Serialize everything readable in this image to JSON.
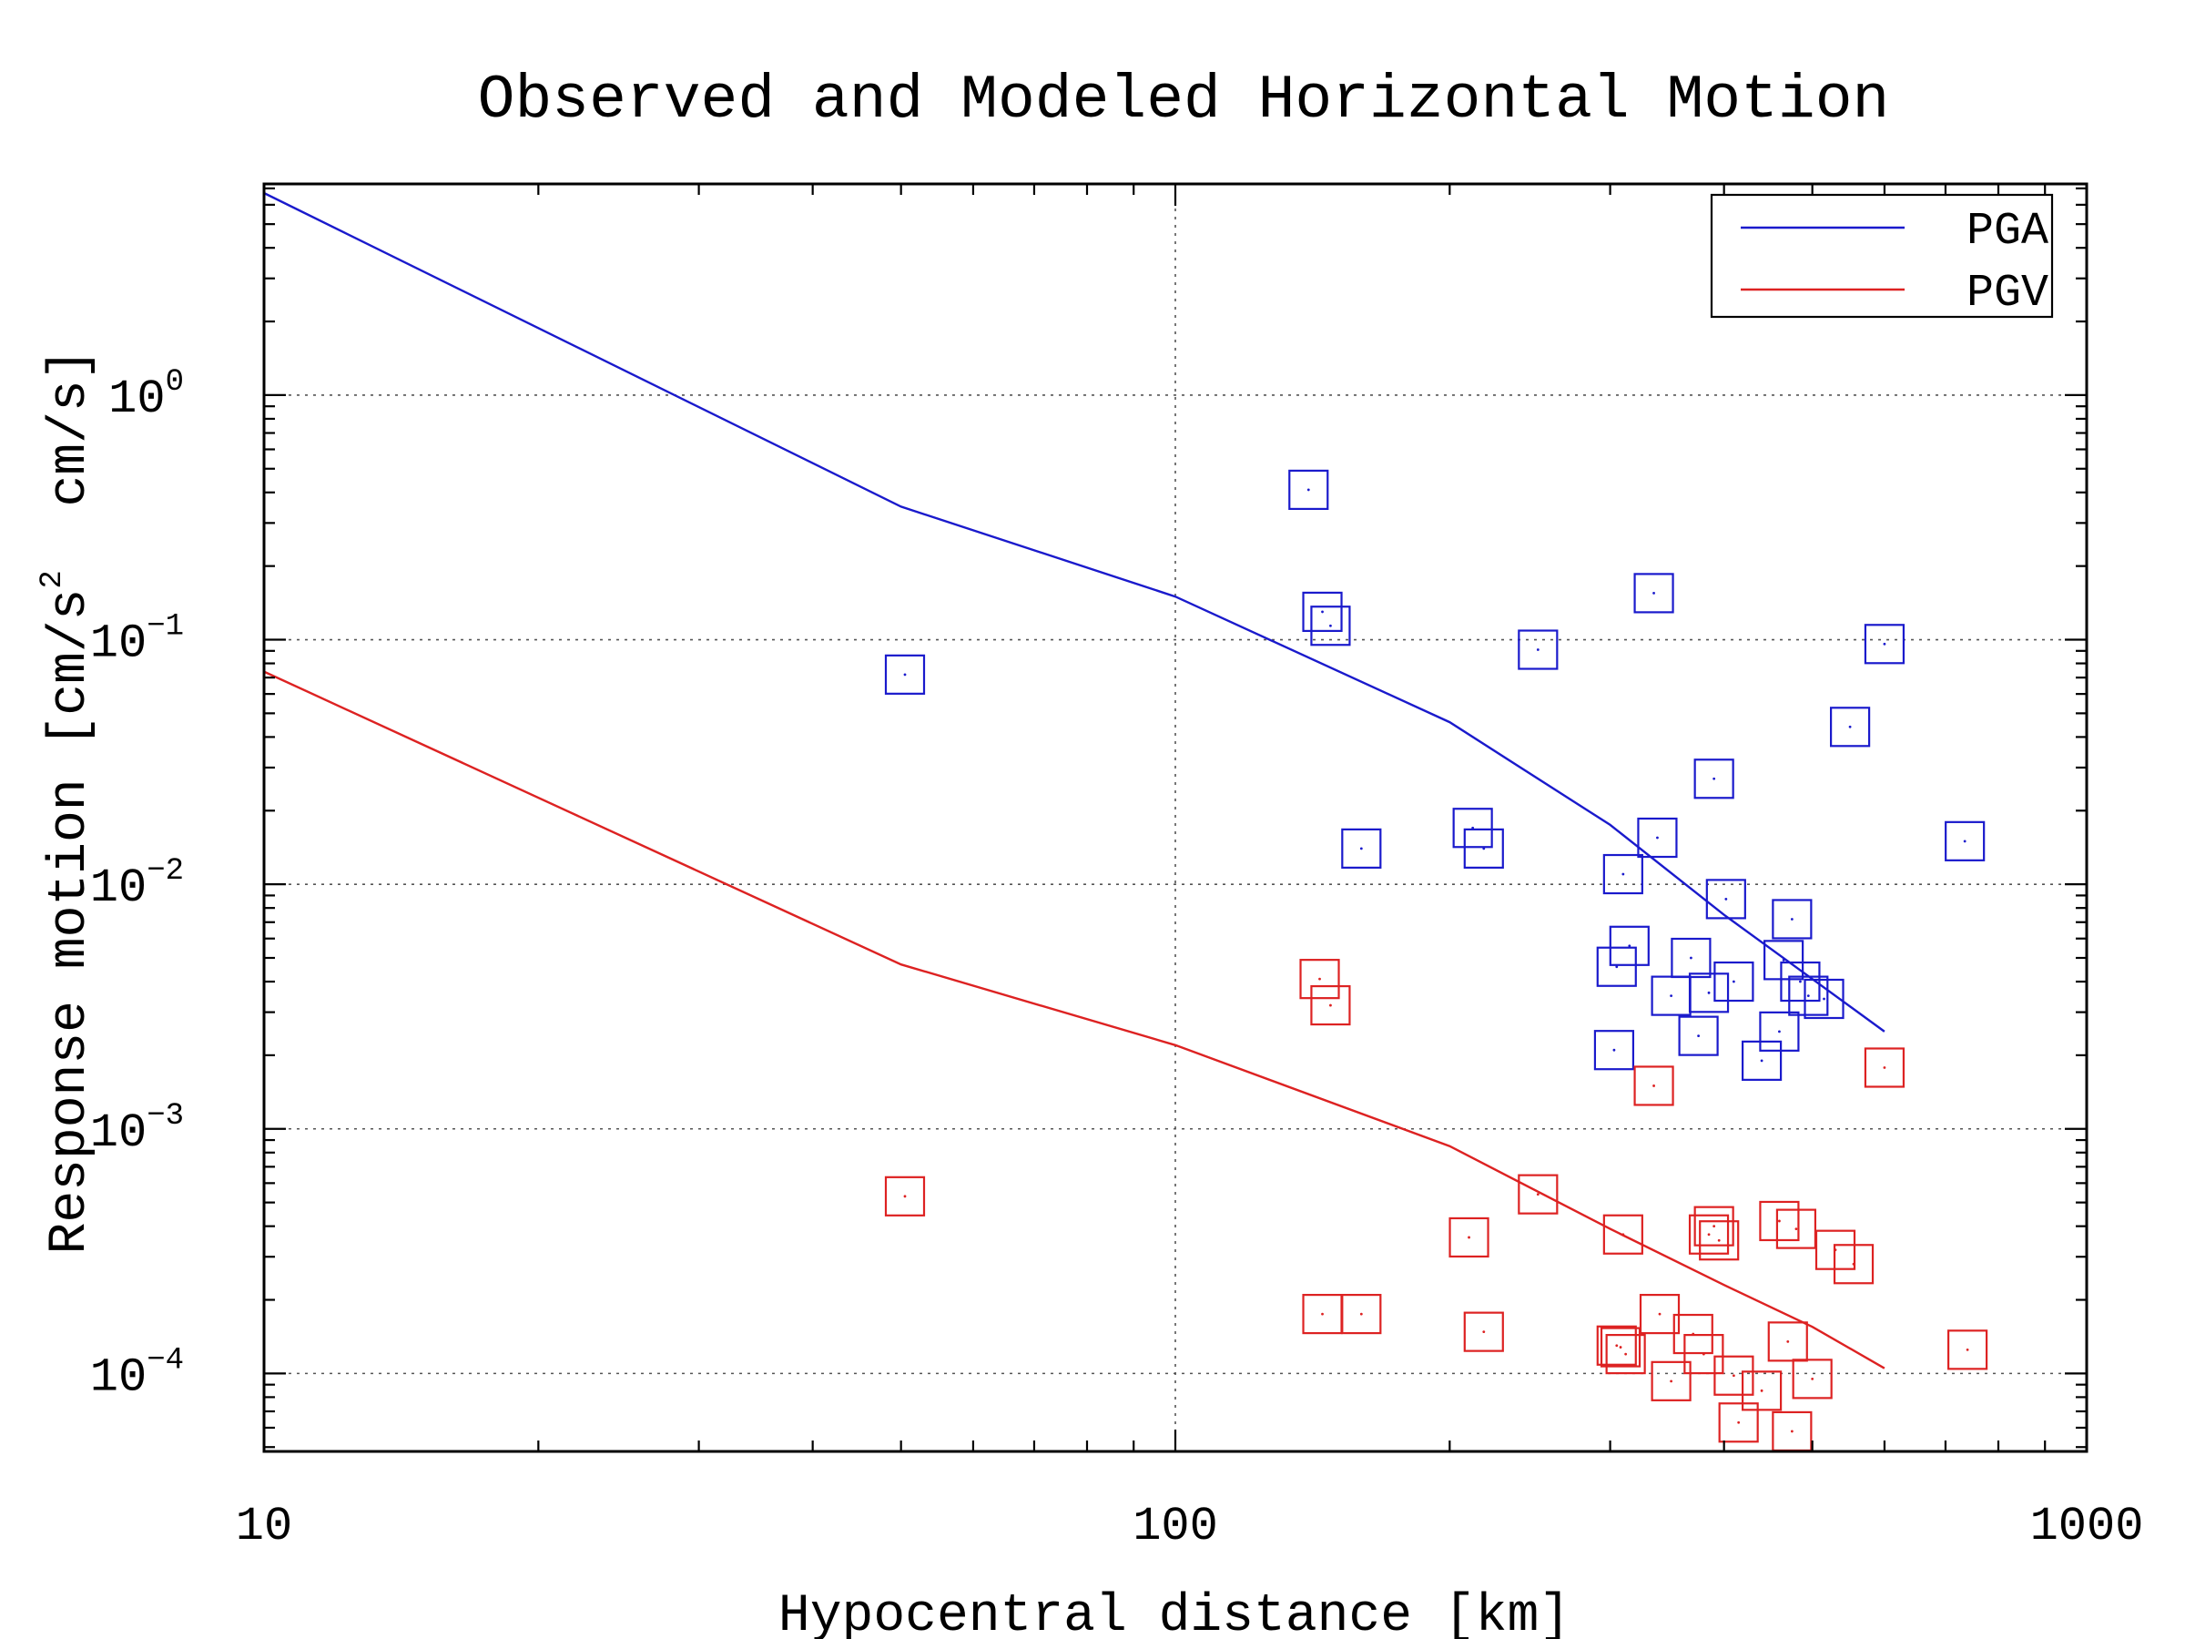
{
  "chart_data": {
    "type": "scatter",
    "title": "Observed and Modeled Horizontal Motion",
    "xlabel": "Hypocentral distance [km]",
    "ylabel": "Response motion [cm/s",
    "ylabel_exp": "2",
    "ylabel_tail": "  cm/s]",
    "xscale": "log",
    "yscale": "log",
    "xlim": [
      10,
      1000
    ],
    "ylim": [
      4.8e-05,
      7.3
    ],
    "grid": true,
    "legend_position": "top-right",
    "x_ticks": [
      {
        "value": 10,
        "label": "10"
      },
      {
        "value": 100,
        "label": "100"
      },
      {
        "value": 1000,
        "label": "1000"
      }
    ],
    "y_ticks": [
      {
        "value": 1,
        "base": "10",
        "exp": "0"
      },
      {
        "value": 0.1,
        "base": "10",
        "exp": "−1"
      },
      {
        "value": 0.01,
        "base": "10",
        "exp": "−2"
      },
      {
        "value": 0.001,
        "base": "10",
        "exp": "−3"
      },
      {
        "value": 0.0001,
        "base": "10",
        "exp": "−4"
      }
    ],
    "series": [
      {
        "name": "PGA",
        "color": "#1a1acc",
        "model": [
          [
            10,
            6.7
          ],
          [
            50,
            0.35
          ],
          [
            100,
            0.15
          ],
          [
            200,
            0.046
          ],
          [
            300,
            0.0175
          ],
          [
            400,
            0.0075
          ],
          [
            500,
            0.0041
          ],
          [
            600,
            0.0025
          ]
        ],
        "observed": [
          [
            50.5,
            0.072
          ],
          [
            140,
            0.41
          ],
          [
            145,
            0.13
          ],
          [
            148,
            0.114
          ],
          [
            160,
            0.014
          ],
          [
            212,
            0.017
          ],
          [
            218,
            0.014
          ],
          [
            250,
            0.091
          ],
          [
            310,
            0.011
          ],
          [
            305,
            0.0046
          ],
          [
            315,
            0.0056
          ],
          [
            303,
            0.0021
          ],
          [
            335,
            0.155
          ],
          [
            338,
            0.0155
          ],
          [
            350,
            0.0035
          ],
          [
            368,
            0.005
          ],
          [
            375,
            0.0024
          ],
          [
            385,
            0.0036
          ],
          [
            390,
            0.027
          ],
          [
            402,
            0.0087
          ],
          [
            410,
            0.004
          ],
          [
            440,
            0.0019
          ],
          [
            460,
            0.0025
          ],
          [
            465,
            0.0049
          ],
          [
            475,
            0.0072
          ],
          [
            485,
            0.004
          ],
          [
            495,
            0.0035
          ],
          [
            515,
            0.0034
          ],
          [
            550,
            0.044
          ],
          [
            600,
            0.096
          ],
          [
            735,
            0.015
          ]
        ]
      },
      {
        "name": "PGV",
        "color": "#dd2222",
        "model": [
          [
            10,
            0.074
          ],
          [
            50,
            0.0047
          ],
          [
            100,
            0.0022
          ],
          [
            200,
            0.00085
          ],
          [
            300,
            0.00039
          ],
          [
            400,
            0.00023
          ],
          [
            500,
            0.000155
          ],
          [
            600,
            0.000105
          ]
        ],
        "observed": [
          [
            50.5,
            0.00053
          ],
          [
            144,
            0.0041
          ],
          [
            148,
            0.0032
          ],
          [
            145,
            0.000175
          ],
          [
            160,
            0.000175
          ],
          [
            210,
            0.00036
          ],
          [
            218,
            0.000148
          ],
          [
            250,
            0.00054
          ],
          [
            305,
            0.00013
          ],
          [
            308,
            0.000128
          ],
          [
            310,
            0.00037
          ],
          [
            312,
            0.00012
          ],
          [
            335,
            0.0015
          ],
          [
            340,
            0.000175
          ],
          [
            350,
            9.3e-05
          ],
          [
            370,
            0.000145
          ],
          [
            380,
            0.00012
          ],
          [
            385,
            0.00037
          ],
          [
            390,
            0.0004
          ],
          [
            395,
            0.00035
          ],
          [
            410,
            9.8e-05
          ],
          [
            415,
            6.3e-05
          ],
          [
            440,
            8.5e-05
          ],
          [
            460,
            0.00042
          ],
          [
            470,
            0.000135
          ],
          [
            475,
            5.8e-05
          ],
          [
            480,
            0.00039
          ],
          [
            500,
            9.5e-05
          ],
          [
            530,
            0.00032
          ],
          [
            555,
            0.00028
          ],
          [
            600,
            0.00178
          ],
          [
            740,
            0.000125
          ]
        ]
      }
    ]
  }
}
